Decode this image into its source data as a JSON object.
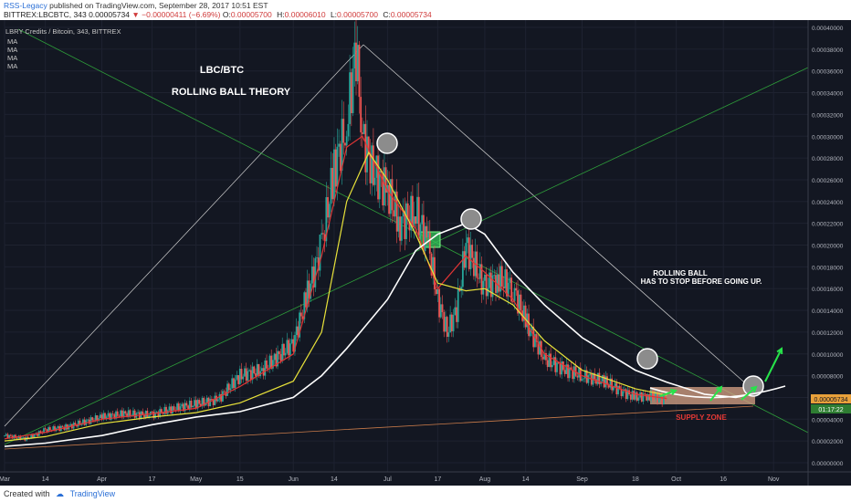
{
  "header": {
    "author": "RSS-Legacy",
    "published_text": "published on TradingView.com, September 28, 2017 10:51 EST",
    "symbol_line": "BITTREX:LBCBTC, 343",
    "price": "0.00005734",
    "change": "▼ −0.00000411 (−6.69%)",
    "ohlc": [
      {
        "k": "O:",
        "v": "0.00005700"
      },
      {
        "k": "H:",
        "v": "0.00006010"
      },
      {
        "k": "L:",
        "v": "0.00005700"
      },
      {
        "k": "C:",
        "v": "0.00005734"
      }
    ]
  },
  "legend": {
    "instrument": "LBRY Credits / Bitcoin, 343, BITTREX",
    "ma_labels": [
      "MA",
      "MA",
      "MA",
      "MA"
    ]
  },
  "annotations": {
    "title1": "LBC/BTC",
    "title2": "ROLLING BALL THEORY",
    "note1": "ROLLING BALL",
    "note2": "HAS TO STOP BEFORE GOING UP.",
    "supply_zone": "SUPPLY ZONE"
  },
  "price_tags": {
    "current": "0.00005734",
    "countdown": "01:17:22"
  },
  "footer": {
    "created_with": "Created with",
    "brand": "TradingView"
  },
  "chart_data": {
    "type": "line",
    "title": "LBC/BTC",
    "subtitle": "ROLLING BALL THEORY",
    "x_tick_labels": [
      "Mar",
      "14",
      "Apr",
      "17",
      "May",
      "15",
      "Jun",
      "14",
      "Jul",
      "17",
      "Aug",
      "14",
      "Sep",
      "18",
      "Oct",
      "16",
      "Nov"
    ],
    "y_tick_labels": [
      "0.00040000",
      "0.00038000",
      "0.00036000",
      "0.00034000",
      "0.00032000",
      "0.00030000",
      "0.00028000",
      "0.00026000",
      "0.00024000",
      "0.00022000",
      "0.00020000",
      "0.00018000",
      "0.00016000",
      "0.00014000",
      "0.00012000",
      "0.00010000",
      "0.00008000",
      "0.00006000",
      "0.00004000",
      "0.00002000",
      "0.00000000"
    ],
    "ylim": [
      0,
      0.0004
    ],
    "x_dates": [
      "2017-03-01",
      "2017-03-14",
      "2017-04-01",
      "2017-04-17",
      "2017-05-01",
      "2017-05-15",
      "2017-06-01",
      "2017-06-14",
      "2017-07-01",
      "2017-07-17",
      "2017-08-01",
      "2017-08-14",
      "2017-09-01",
      "2017-09-18",
      "2017-10-01",
      "2017-10-16",
      "2017-11-01"
    ],
    "price": {
      "x": [
        "2017-03-01",
        "2017-03-08",
        "2017-03-14",
        "2017-03-21",
        "2017-04-01",
        "2017-04-08",
        "2017-04-17",
        "2017-04-24",
        "2017-05-01",
        "2017-05-08",
        "2017-05-15",
        "2017-05-22",
        "2017-06-01",
        "2017-06-05",
        "2017-06-10",
        "2017-06-14",
        "2017-06-18",
        "2017-06-21",
        "2017-06-23",
        "2017-06-26",
        "2017-07-01",
        "2017-07-05",
        "2017-07-10",
        "2017-07-14",
        "2017-07-17",
        "2017-07-20",
        "2017-07-23",
        "2017-07-26",
        "2017-08-01",
        "2017-08-05",
        "2017-08-10",
        "2017-08-14",
        "2017-08-20",
        "2017-08-27",
        "2017-09-01",
        "2017-09-08",
        "2017-09-14",
        "2017-09-18",
        "2017-09-22",
        "2017-09-28"
      ],
      "y": [
        2.5e-05,
        2.2e-05,
        3e-05,
        3.3e-05,
        4.2e-05,
        4.5e-05,
        4.4e-05,
        5e-05,
        5.4e-05,
        5.8e-05,
        8e-05,
        8.5e-05,
        0.00011,
        0.00015,
        0.0002,
        0.00027,
        0.00031,
        0.00038,
        0.0003,
        0.00027,
        0.00025,
        0.00022,
        0.00023,
        0.0002,
        0.00015,
        0.00012,
        0.00014,
        0.0002,
        0.00016,
        0.00017,
        0.00016,
        0.00013,
        9.5e-05,
        8.5e-05,
        8e-05,
        7.5e-05,
        6.5e-05,
        6e-05,
        6.2e-05,
        5.7e-05
      ]
    },
    "series": [
      {
        "color": "#e03535",
        "x": [
          "2017-03-01",
          "2017-03-14",
          "2017-04-01",
          "2017-04-17",
          "2017-05-01",
          "2017-05-15",
          "2017-06-01",
          "2017-06-10",
          "2017-06-18",
          "2017-06-23",
          "2017-07-01",
          "2017-07-10",
          "2017-07-17",
          "2017-07-26",
          "2017-08-01",
          "2017-08-10",
          "2017-08-20",
          "2017-09-01",
          "2017-09-18",
          "2017-09-28"
        ],
        "y": [
          2.2e-05,
          2.8e-05,
          4e-05,
          4.5e-05,
          5e-05,
          7e-05,
          0.0001,
          0.00019,
          0.00029,
          0.0003,
          0.00025,
          0.000215,
          0.00016,
          0.00019,
          0.000175,
          0.00015,
          0.0001,
          8e-05,
          6.3e-05,
          5.9e-05
        ]
      },
      {
        "color": "#e8e23a",
        "x": [
          "2017-03-01",
          "2017-03-14",
          "2017-04-01",
          "2017-04-17",
          "2017-05-01",
          "2017-05-15",
          "2017-06-01",
          "2017-06-10",
          "2017-06-18",
          "2017-06-25",
          "2017-07-01",
          "2017-07-10",
          "2017-07-17",
          "2017-07-26",
          "2017-08-01",
          "2017-08-10",
          "2017-08-20",
          "2017-09-01",
          "2017-09-18",
          "2017-09-28"
        ],
        "y": [
          2e-05,
          2.4e-05,
          3.6e-05,
          4.2e-05,
          4.6e-05,
          5.5e-05,
          7.5e-05,
          0.00012,
          0.00024,
          0.000285,
          0.00026,
          0.00021,
          0.000165,
          0.000158,
          0.00016,
          0.000145,
          0.000112,
          8.5e-05,
          6.8e-05,
          6.2e-05
        ]
      },
      {
        "color": "#ffffff",
        "x": [
          "2017-03-01",
          "2017-03-14",
          "2017-04-01",
          "2017-04-17",
          "2017-05-01",
          "2017-05-15",
          "2017-06-01",
          "2017-06-10",
          "2017-06-18",
          "2017-07-01",
          "2017-07-10",
          "2017-07-17",
          "2017-07-26",
          "2017-08-01",
          "2017-08-10",
          "2017-08-20",
          "2017-09-01",
          "2017-09-18",
          "2017-09-28",
          "2017-10-10",
          "2017-10-20",
          "2017-10-28"
        ],
        "y": [
          1.5e-05,
          1.8e-05,
          2.5e-05,
          3.5e-05,
          4.2e-05,
          4.7e-05,
          6e-05,
          8e-05,
          0.000105,
          0.00015,
          0.000195,
          0.00021,
          0.00022,
          0.00021,
          0.000175,
          0.000145,
          0.000115,
          8.5e-05,
          7.4e-05,
          6.3e-05,
          6e-05,
          6.5e-05
        ]
      }
    ]
  }
}
